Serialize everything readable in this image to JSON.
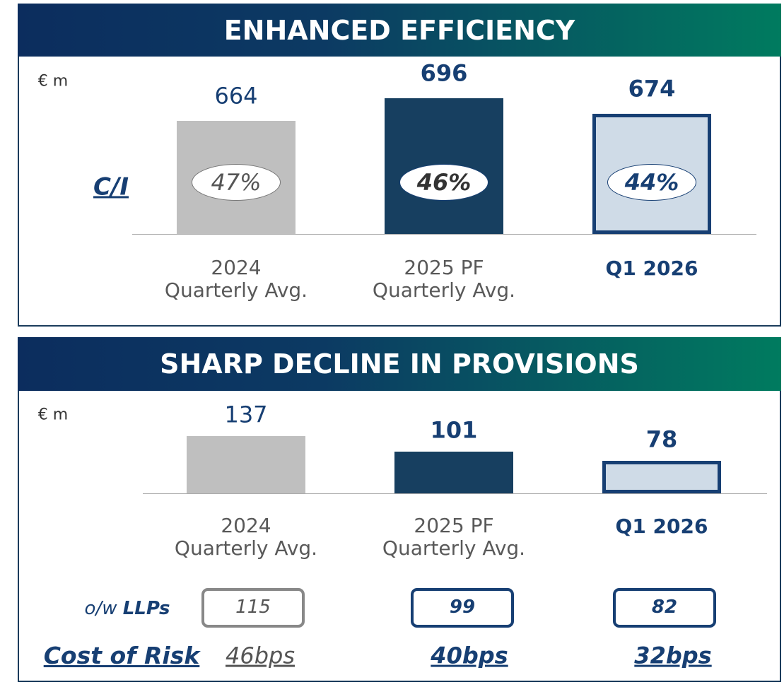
{
  "chart_data": [
    {
      "type": "bar",
      "title": "ENHANCED EFFICIENCY",
      "unit": "€ m",
      "categories": [
        "2024\nQuarterly Avg.",
        "2025 PF\nQuarterly Avg.",
        "Q1 2026"
      ],
      "values": [
        664,
        696,
        674
      ],
      "ylim": [
        504,
        730
      ],
      "colors": [
        "#bfbfbf",
        "#173f60",
        "#cfdbe7"
      ],
      "ratio_label": "C/I",
      "ratios": [
        47,
        46,
        44
      ],
      "ratio_labels": [
        "47%",
        "46%",
        "44%"
      ]
    },
    {
      "type": "bar",
      "title": "SHARP DECLINE IN PROVISIONS",
      "unit": "€ m",
      "categories": [
        "2024\nQuarterly Avg.",
        "2025 PF\nQuarterly Avg.",
        "Q1 2026"
      ],
      "values": [
        137,
        101,
        78
      ],
      "ylim": [
        0,
        170
      ],
      "colors": [
        "#bfbfbf",
        "#173f60",
        "#cfdbe7"
      ],
      "llp_prefix": "o/w",
      "llp_label": "LLPs",
      "llps": [
        115,
        99,
        82
      ],
      "cost_label": "Cost of Risk",
      "cost_of_risk": [
        46,
        40,
        32
      ],
      "cost_of_risk_labels": [
        "46bps",
        "40bps",
        "32bps"
      ]
    }
  ]
}
